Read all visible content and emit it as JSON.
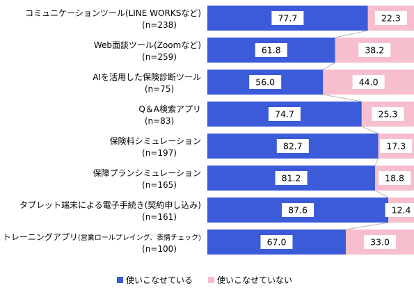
{
  "chart_data": {
    "type": "bar",
    "orientation": "horizontal",
    "stacked": true,
    "percent_stacked": true,
    "categories": [
      {
        "name": "コミュニケーションツール(LINE WORKSなど)",
        "n": "(n=238)"
      },
      {
        "name": "Web面談ツール(Zoomなど)",
        "n": "(n=259)"
      },
      {
        "name": "AIを活用した保険診断ツール",
        "n": "(n=75)"
      },
      {
        "name": "Q＆A検索アプリ",
        "n": "(n=83)"
      },
      {
        "name": "保険料シミュレーション",
        "n": "(n=197)"
      },
      {
        "name": "保障プランシミュレーション",
        "n": "(n=165)"
      },
      {
        "name": "タブレット端末による電子手続き(契約申し込み)",
        "n": "(n=161)"
      },
      {
        "name": "トレーニングアプリ",
        "name_small": "(営業ロールプレイング、表情チェック)",
        "n": "(n=100)"
      }
    ],
    "series": [
      {
        "name": "使いこなせている",
        "color": "#3b5bd9",
        "values": [
          "77.7",
          "61.8",
          "56.0",
          "74.7",
          "82.7",
          "81.2",
          "87.6",
          "67.0"
        ]
      },
      {
        "name": "使いこなせていない",
        "color": "#f7bfcd",
        "values": [
          "22.3",
          "38.2",
          "44.0",
          "25.3",
          "17.3",
          "18.8",
          "12.4",
          "33.0"
        ]
      }
    ],
    "xlim": [
      0,
      100
    ],
    "legend_position": "bottom"
  }
}
